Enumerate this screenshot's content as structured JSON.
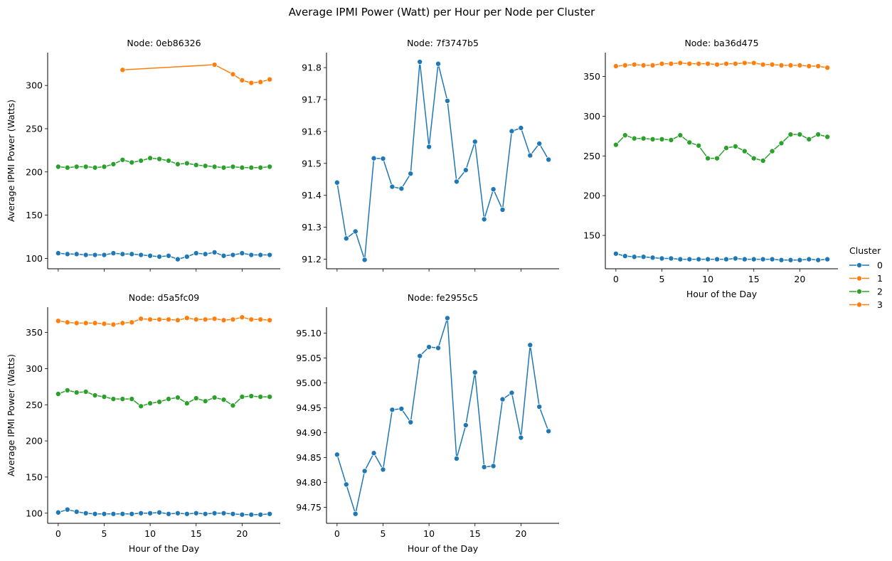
{
  "title": "Average IPMI Power (Watt) per Hour per Node per Cluster",
  "legend": {
    "title": "Cluster",
    "entries": [
      {
        "label": "0",
        "color": "#1f77b4"
      },
      {
        "label": "1",
        "color": "#ff7f0e"
      },
      {
        "label": "2",
        "color": "#2ca02c"
      },
      {
        "label": "3",
        "color": "#ff7f0e"
      }
    ]
  },
  "chart_data": [
    {
      "type": "line",
      "title": "Node: 0eb86326",
      "xlabel": "",
      "ylabel": "Average IPMI Power (Watts)",
      "xlim": [
        -1.15,
        24.15
      ],
      "ylim": [
        88,
        338
      ],
      "yticks": [
        100,
        150,
        200,
        250,
        300
      ],
      "xticks": [
        0,
        5,
        10,
        15,
        20
      ],
      "show_xtick_labels": false,
      "series": [
        {
          "name": "0",
          "color": "#1f77b4",
          "x": [
            0,
            1,
            2,
            3,
            4,
            5,
            6,
            7,
            8,
            9,
            10,
            11,
            12,
            13,
            14,
            15,
            16,
            17,
            18,
            19,
            20,
            21,
            22,
            23
          ],
          "y": [
            106,
            105,
            105,
            104,
            104,
            104,
            106,
            105,
            105,
            104,
            103,
            102,
            103,
            99,
            102,
            106,
            105,
            107,
            103,
            104,
            106,
            104,
            104,
            104
          ]
        },
        {
          "name": "1",
          "color": "#ff7f0e",
          "x": [
            7,
            17,
            19,
            20,
            21,
            22,
            23
          ],
          "y": [
            318,
            324,
            313,
            306,
            303,
            304,
            307
          ]
        },
        {
          "name": "2",
          "color": "#2ca02c",
          "x": [
            0,
            1,
            2,
            3,
            4,
            5,
            6,
            7,
            8,
            9,
            10,
            11,
            12,
            13,
            14,
            15,
            16,
            17,
            18,
            19,
            20,
            21,
            22,
            23
          ],
          "y": [
            206,
            205,
            206,
            206,
            205,
            206,
            209,
            214,
            211,
            213,
            216,
            215,
            213,
            209,
            210,
            208,
            207,
            206,
            205,
            206,
            205,
            205,
            205,
            206
          ]
        }
      ]
    },
    {
      "type": "line",
      "title": "Node: 7f3747b5",
      "xlabel": "",
      "ylabel": "",
      "xlim": [
        -1.15,
        24.15
      ],
      "ylim": [
        91.17,
        91.847
      ],
      "yticks": [
        91.2,
        91.3,
        91.4,
        91.5,
        91.6,
        91.7,
        91.8
      ],
      "xticks": [
        0,
        5,
        10,
        15,
        20
      ],
      "show_xtick_labels": false,
      "series": [
        {
          "name": "0",
          "color": "#1f77b4",
          "x": [
            0,
            1,
            2,
            3,
            4,
            5,
            6,
            7,
            8,
            9,
            10,
            11,
            12,
            13,
            14,
            15,
            16,
            17,
            18,
            19,
            20,
            21,
            22,
            23
          ],
          "y": [
            91.44,
            91.265,
            91.287,
            91.198,
            91.516,
            91.515,
            91.427,
            91.421,
            91.468,
            91.818,
            91.552,
            91.812,
            91.696,
            91.443,
            91.479,
            91.568,
            91.325,
            91.419,
            91.355,
            91.601,
            91.611,
            91.525,
            91.562,
            91.512
          ]
        }
      ]
    },
    {
      "type": "line",
      "title": "Node: ba36d475",
      "xlabel": "Hour of the Day",
      "ylabel": "",
      "xlim": [
        -1.15,
        24.15
      ],
      "ylim": [
        108,
        380
      ],
      "yticks": [
        150,
        200,
        250,
        300,
        350
      ],
      "xticks": [
        0,
        5,
        10,
        15,
        20
      ],
      "show_xtick_labels": true,
      "series": [
        {
          "name": "0",
          "color": "#1f77b4",
          "x": [
            0,
            1,
            2,
            3,
            4,
            5,
            6,
            7,
            8,
            9,
            10,
            11,
            12,
            13,
            14,
            15,
            16,
            17,
            18,
            19,
            20,
            21,
            22,
            23
          ],
          "y": [
            127,
            124,
            123,
            123,
            122,
            121,
            121,
            120,
            120,
            120,
            120,
            120,
            120,
            121,
            120,
            120,
            120,
            120,
            119,
            119,
            119,
            120,
            119,
            120
          ]
        },
        {
          "name": "3",
          "color": "#ff7f0e",
          "x": [
            0,
            1,
            2,
            3,
            4,
            5,
            6,
            7,
            8,
            9,
            10,
            11,
            12,
            13,
            14,
            15,
            16,
            17,
            18,
            19,
            20,
            21,
            22,
            23
          ],
          "y": [
            363,
            364,
            365,
            364,
            364,
            366,
            366,
            367,
            366,
            366,
            366,
            365,
            366,
            366,
            367,
            367,
            365,
            365,
            364,
            364,
            364,
            363,
            363,
            361
          ]
        },
        {
          "name": "2",
          "color": "#2ca02c",
          "x": [
            0,
            1,
            2,
            3,
            4,
            5,
            6,
            7,
            8,
            9,
            10,
            11,
            12,
            13,
            14,
            15,
            16,
            17,
            18,
            19,
            20,
            21,
            22,
            23
          ],
          "y": [
            264,
            276,
            272,
            272,
            271,
            271,
            270,
            276,
            267,
            263,
            247,
            247,
            260,
            262,
            256,
            247,
            244,
            256,
            266,
            277,
            277,
            271,
            277,
            274
          ]
        }
      ]
    },
    {
      "type": "line",
      "title": "Node: d5a5fc09",
      "xlabel": "Hour of the Day",
      "ylabel": "Average IPMI Power (Watts)",
      "xlim": [
        -1.15,
        24.15
      ],
      "ylim": [
        86,
        385
      ],
      "yticks": [
        100,
        150,
        200,
        250,
        300,
        350
      ],
      "xticks": [
        0,
        5,
        10,
        15,
        20
      ],
      "show_xtick_labels": true,
      "series": [
        {
          "name": "0",
          "color": "#1f77b4",
          "x": [
            0,
            1,
            2,
            3,
            4,
            5,
            6,
            7,
            8,
            9,
            10,
            11,
            12,
            13,
            14,
            15,
            16,
            17,
            18,
            19,
            20,
            21,
            22,
            23
          ],
          "y": [
            101,
            105,
            102,
            100,
            99,
            99,
            99,
            99,
            99,
            100,
            100,
            101,
            99,
            100,
            99,
            100,
            99,
            100,
            100,
            99,
            98,
            98,
            98,
            99
          ]
        },
        {
          "name": "3",
          "color": "#ff7f0e",
          "x": [
            0,
            1,
            2,
            3,
            4,
            5,
            6,
            7,
            8,
            9,
            10,
            11,
            12,
            13,
            14,
            15,
            16,
            17,
            18,
            19,
            20,
            21,
            22,
            23
          ],
          "y": [
            366,
            364,
            363,
            363,
            363,
            362,
            361,
            363,
            364,
            369,
            368,
            368,
            368,
            367,
            370,
            368,
            368,
            369,
            367,
            368,
            371,
            368,
            368,
            367
          ]
        },
        {
          "name": "2",
          "color": "#2ca02c",
          "x": [
            0,
            1,
            2,
            3,
            4,
            5,
            6,
            7,
            8,
            9,
            10,
            11,
            12,
            13,
            14,
            15,
            16,
            17,
            18,
            19,
            20,
            21,
            22,
            23
          ],
          "y": [
            265,
            270,
            267,
            268,
            263,
            261,
            258,
            258,
            258,
            248,
            252,
            254,
            258,
            260,
            252,
            259,
            255,
            260,
            257,
            249,
            261,
            262,
            261,
            261
          ]
        }
      ]
    },
    {
      "type": "line",
      "title": "Node: fe2955c5",
      "xlabel": "Hour of the Day",
      "ylabel": "",
      "xlim": [
        -1.15,
        24.15
      ],
      "ylim": [
        94.718,
        95.152
      ],
      "yticks": [
        94.75,
        94.8,
        94.85,
        94.9,
        94.95,
        95.0,
        95.05,
        95.1
      ],
      "xticks": [
        0,
        5,
        10,
        15,
        20
      ],
      "show_xtick_labels": true,
      "series": [
        {
          "name": "0",
          "color": "#1f77b4",
          "x": [
            0,
            1,
            2,
            3,
            4,
            5,
            6,
            7,
            8,
            9,
            10,
            11,
            12,
            13,
            14,
            15,
            16,
            17,
            18,
            19,
            20,
            21,
            22,
            23
          ],
          "y": [
            94.856,
            94.796,
            94.737,
            94.823,
            94.859,
            94.826,
            94.946,
            94.948,
            94.921,
            95.054,
            95.072,
            95.07,
            95.13,
            94.848,
            94.915,
            95.021,
            94.831,
            94.833,
            94.967,
            94.98,
            94.89,
            95.076,
            94.952,
            94.903
          ]
        }
      ]
    }
  ]
}
